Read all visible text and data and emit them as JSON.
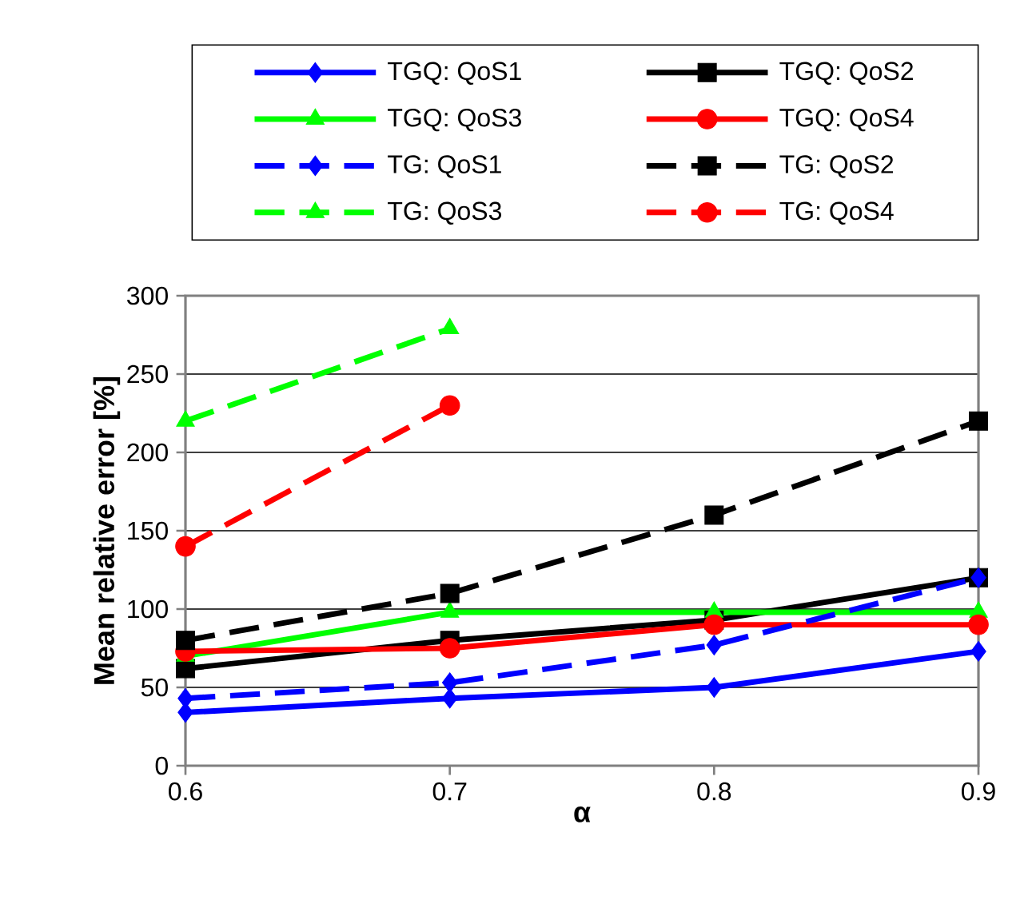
{
  "chart_data": {
    "type": "line",
    "xlabel": "α",
    "ylabel": "Mean relative error [%]",
    "x": [
      0.6,
      0.7,
      0.8,
      0.9
    ],
    "xlim": [
      0.6,
      0.9
    ],
    "xticks": [
      0.6,
      0.7,
      0.8,
      0.9
    ],
    "ylim": [
      0,
      300
    ],
    "yticks": [
      0,
      50,
      100,
      150,
      200,
      250,
      300
    ],
    "grid": "y",
    "legend": "top",
    "series": [
      {
        "name": "TGQ: QoS1",
        "color": "#0000ff",
        "marker": "diamond",
        "line_style": "solid",
        "values": [
          34,
          43,
          50,
          73
        ]
      },
      {
        "name": "TGQ: QoS2",
        "color": "#000000",
        "marker": "square",
        "line_style": "solid",
        "values": [
          62,
          80,
          93,
          120
        ]
      },
      {
        "name": "TGQ: QoS3",
        "color": "#00ff00",
        "marker": "triangle",
        "line_style": "solid",
        "values": [
          70,
          98,
          98,
          98
        ]
      },
      {
        "name": "TGQ: QoS4",
        "color": "#ff0000",
        "marker": "circle",
        "line_style": "solid",
        "values": [
          73,
          75,
          90,
          90
        ]
      },
      {
        "name": "TG: QoS1",
        "color": "#0000ff",
        "marker": "diamond",
        "line_style": "dashed",
        "values": [
          43,
          53,
          77,
          120
        ]
      },
      {
        "name": "TG: QoS2",
        "color": "#000000",
        "marker": "square",
        "line_style": "dashed",
        "values": [
          80,
          110,
          160,
          220
        ]
      },
      {
        "name": "TG: QoS3",
        "color": "#00ff00",
        "marker": "triangle",
        "line_style": "dashed",
        "values": [
          220,
          279,
          null,
          null
        ]
      },
      {
        "name": "TG: QoS4",
        "color": "#ff0000",
        "marker": "circle",
        "line_style": "dashed",
        "values": [
          140,
          230,
          null,
          null
        ]
      }
    ]
  }
}
